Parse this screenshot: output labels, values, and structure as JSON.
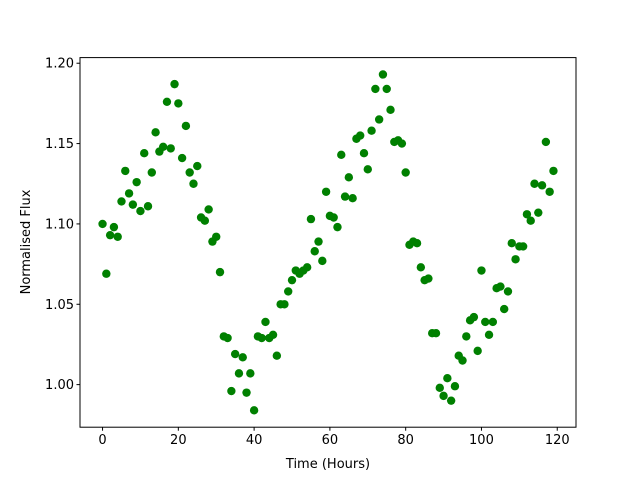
{
  "chart_data": {
    "type": "scatter",
    "x_label": "Time (Hours)",
    "y_label": "Normalised Flux",
    "color": "#008000",
    "x": [
      0,
      1,
      2,
      3,
      4,
      5,
      6,
      7,
      8,
      9,
      10,
      11,
      12,
      13,
      14,
      15,
      16,
      17,
      18,
      19,
      20,
      21,
      22,
      23,
      24,
      25,
      26,
      27,
      28,
      29,
      30,
      31,
      32,
      33,
      34,
      35,
      36,
      37,
      38,
      39,
      40,
      41,
      42,
      43,
      44,
      45,
      46,
      47,
      48,
      49,
      50,
      51,
      52,
      53,
      54,
      55,
      56,
      57,
      58,
      59,
      60,
      61,
      62,
      63,
      64,
      65,
      66,
      67,
      68,
      69,
      70,
      71,
      72,
      73,
      74,
      75,
      76,
      77,
      78,
      79,
      80,
      81,
      82,
      83,
      84,
      85,
      86,
      87,
      88,
      89,
      90,
      91,
      92,
      93,
      94,
      95,
      96,
      97,
      98,
      99,
      100,
      101,
      102,
      103,
      104,
      105,
      106,
      107,
      108,
      109,
      110,
      111,
      112,
      113,
      114,
      115,
      116,
      117,
      118,
      119
    ],
    "values": [
      1.1,
      1.069,
      1.093,
      1.098,
      1.092,
      1.114,
      1.133,
      1.119,
      1.112,
      1.126,
      1.108,
      1.144,
      1.111,
      1.132,
      1.157,
      1.145,
      1.148,
      1.176,
      1.147,
      1.187,
      1.175,
      1.141,
      1.161,
      1.132,
      1.125,
      1.136,
      1.104,
      1.102,
      1.109,
      1.089,
      1.092,
      1.07,
      1.03,
      1.029,
      0.996,
      1.019,
      1.007,
      1.017,
      0.995,
      1.007,
      0.984,
      1.03,
      1.029,
      1.039,
      1.029,
      1.031,
      1.018,
      1.05,
      1.05,
      1.058,
      1.065,
      1.071,
      1.069,
      1.071,
      1.073,
      1.103,
      1.083,
      1.089,
      1.077,
      1.12,
      1.105,
      1.104,
      1.098,
      1.143,
      1.117,
      1.129,
      1.116,
      1.153,
      1.155,
      1.144,
      1.134,
      1.158,
      1.184,
      1.165,
      1.193,
      1.184,
      1.171,
      1.151,
      1.152,
      1.15,
      1.132,
      1.087,
      1.089,
      1.088,
      1.073,
      1.065,
      1.066,
      1.032,
      1.032,
      0.998,
      0.993,
      1.004,
      0.99,
      0.999,
      1.018,
      1.015,
      1.03,
      1.04,
      1.042,
      1.021,
      1.071,
      1.039,
      1.031,
      1.039,
      1.06,
      1.061,
      1.047,
      1.058,
      1.088,
      1.078,
      1.086,
      1.086,
      1.106,
      1.102,
      1.125,
      1.107,
      1.124,
      1.151,
      1.12,
      1.133
    ],
    "xlim": [
      -5.95,
      124.95
    ],
    "xticks": [
      0,
      20,
      40,
      60,
      80,
      100,
      120
    ],
    "ylim": [
      0.9735,
      1.2035
    ],
    "yticks": [
      {
        "value": 1.0,
        "label": "1.00"
      },
      {
        "value": 1.05,
        "label": "1.05"
      },
      {
        "value": 1.1,
        "label": "1.10"
      },
      {
        "value": 1.15,
        "label": "1.15"
      },
      {
        "value": 1.2,
        "label": "1.20"
      }
    ]
  }
}
